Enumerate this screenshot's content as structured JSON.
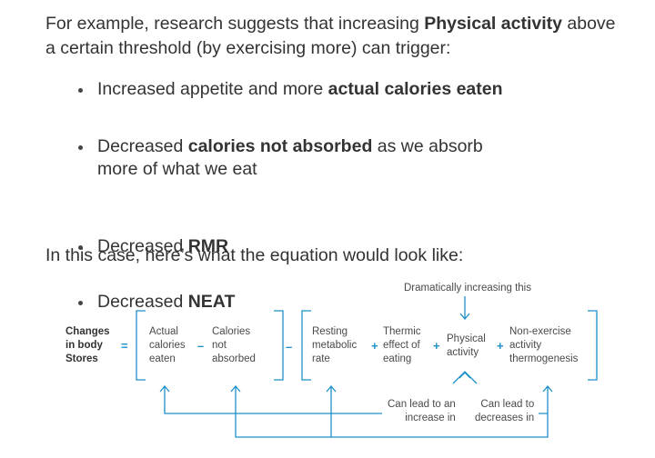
{
  "intro": {
    "pre": "For example, research suggests that increasing ",
    "bold": "Physical activity",
    "post": " above a certain threshold (by exercising more) can trigger:"
  },
  "bullets": [
    {
      "pre": "Increased appetite and more ",
      "bold": "actual calories eaten",
      "post": ""
    },
    {
      "pre": "Decreased ",
      "bold": "calories not absorbed",
      "post": " as we absorb more of what we eat"
    },
    {
      "pre": "Decreased ",
      "bold": "RMR",
      "post": ""
    },
    {
      "pre": "Decreased ",
      "bold": "NEAT",
      "post": ""
    }
  ],
  "outro": "In this case, here’s what the equation would look like:",
  "equation": {
    "top_note": "Dramatically increasing this",
    "lhs": "Changes\nin body\nStores",
    "equals": "=",
    "actual_calories": "Actual\ncalories\neaten",
    "minus_inner": "–",
    "calories_not_absorbed": "Calories\nnot\nabsorbed",
    "minus_outer": "–",
    "resting_metabolic": "Resting\nmetabolic\nrate",
    "plus1": "+",
    "thermic_effect": "Thermic\neffect of\neating",
    "plus2": "+",
    "physical_activity": "Physical\nactivity",
    "plus3": "+",
    "neat": "Non-exercise\nactivity\nthermogenesis",
    "lead_increase": "Can lead to an\nincrease in",
    "lead_decrease": "Can lead to\ndecreases in",
    "accent_color": "#1e90c8"
  }
}
